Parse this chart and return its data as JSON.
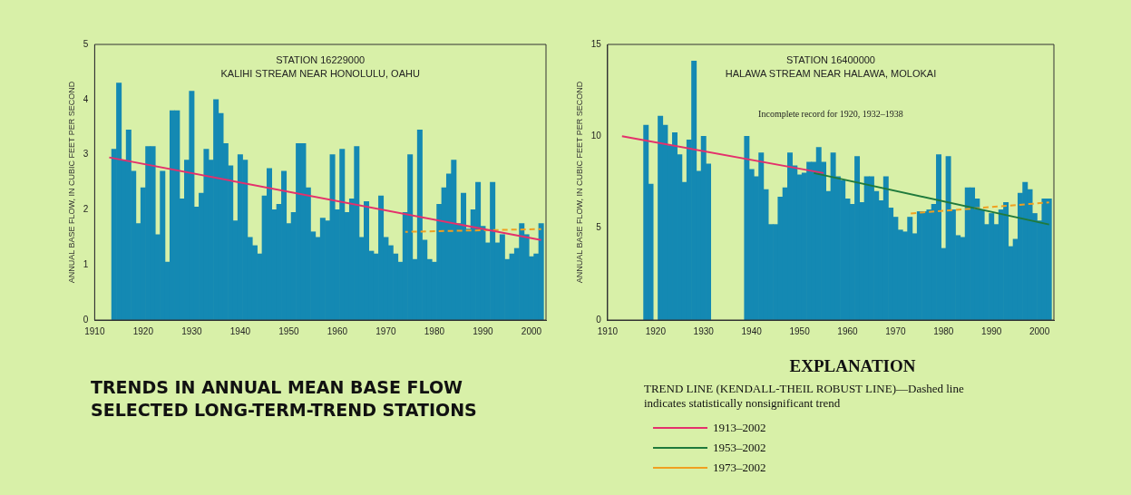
{
  "chart_data": [
    {
      "type": "bar",
      "title": "STATION 16229000\nKALIHI STREAM NEAR HONOLULU, OAHU",
      "subtitle": "TRENDS IN ANNUAL MEAN BASE FLOW\nSELECTED LONG-TERM-TREND STATIONS",
      "ylabel": "ANNUAL BASE FLOW, IN CUBIC FEET PER SECOND",
      "x": [
        1914,
        1915,
        1916,
        1917,
        1918,
        1919,
        1920,
        1921,
        1922,
        1923,
        1924,
        1925,
        1926,
        1927,
        1928,
        1929,
        1930,
        1931,
        1932,
        1933,
        1934,
        1935,
        1936,
        1937,
        1938,
        1939,
        1940,
        1941,
        1942,
        1943,
        1944,
        1945,
        1946,
        1947,
        1948,
        1949,
        1950,
        1951,
        1952,
        1953,
        1954,
        1955,
        1956,
        1957,
        1958,
        1959,
        1960,
        1961,
        1962,
        1963,
        1964,
        1965,
        1966,
        1967,
        1968,
        1969,
        1970,
        1971,
        1972,
        1973,
        1974,
        1975,
        1976,
        1977,
        1978,
        1979,
        1980,
        1981,
        1982,
        1983,
        1984,
        1985,
        1986,
        1987,
        1988,
        1989,
        1990,
        1991,
        1992,
        1993,
        1994,
        1995,
        1996,
        1997,
        1998,
        1999,
        2000,
        2001,
        2002
      ],
      "series": [
        {
          "color": "#1489b3",
          "values": [
            3.1,
            4.3,
            2.9,
            3.45,
            2.7,
            1.75,
            2.4,
            3.15,
            3.15,
            1.55,
            2.7,
            1.05,
            3.8,
            3.8,
            2.2,
            2.9,
            4.15,
            2.05,
            2.3,
            3.1,
            2.9,
            4.0,
            3.75,
            3.2,
            2.8,
            1.8,
            3.0,
            2.9,
            1.5,
            1.35,
            1.2,
            2.25,
            2.75,
            2.0,
            2.1,
            2.7,
            1.75,
            1.95,
            3.2,
            3.2,
            2.4,
            1.6,
            1.5,
            1.85,
            1.8,
            3.0,
            2.0,
            3.1,
            1.95,
            2.2,
            3.15,
            1.5,
            2.15,
            1.25,
            1.2,
            2.25,
            1.5,
            1.35,
            1.2,
            1.05,
            1.95,
            3.0,
            1.1,
            3.45,
            1.45,
            1.1,
            1.05,
            2.1,
            2.4,
            2.65,
            2.9,
            1.75,
            2.3,
            1.65,
            2.0,
            2.5,
            1.7,
            1.4,
            2.5,
            1.4,
            1.55,
            1.1,
            1.2,
            1.3,
            1.75,
            1.55,
            1.15,
            1.2,
            1.75
          ]
        },
        {
          "type": "line",
          "color": "#e4306c",
          "x": [
            1913,
            2002
          ],
          "values": [
            2.95,
            1.45
          ]
        },
        {
          "type": "line",
          "color": "#f0a020",
          "line_style": "dashed",
          "x": [
            1974,
            2002
          ],
          "values": [
            1.6,
            1.65
          ]
        }
      ],
      "xlim": [
        1910,
        2003
      ],
      "xticks": [
        1910,
        1920,
        1930,
        1940,
        1950,
        1960,
        1970,
        1980,
        1990,
        2000
      ],
      "ylim": [
        0,
        5
      ],
      "yticks": [
        0,
        1,
        2,
        3,
        4,
        5
      ],
      "grid": false,
      "legend": false,
      "marker": "none"
    },
    {
      "type": "bar",
      "title": "STATION 16400000\nHALAWA STREAM NEAR HALAWA, MOLOKAI",
      "subtitle": "TREND LINE (KENDALL-THEIL ROBUST LINE)—Dashed line indicates statistically nonsignificant trend",
      "ylabel": "ANNUAL BASE FLOW, IN CUBIC FEET PER SECOND",
      "x": [
        1918,
        1919,
        1920,
        1921,
        1922,
        1923,
        1924,
        1925,
        1926,
        1927,
        1928,
        1929,
        1930,
        1931,
        1932,
        1933,
        1934,
        1935,
        1936,
        1937,
        1938,
        1939,
        1940,
        1941,
        1942,
        1943,
        1944,
        1945,
        1946,
        1947,
        1948,
        1949,
        1950,
        1951,
        1952,
        1953,
        1954,
        1955,
        1956,
        1957,
        1958,
        1959,
        1960,
        1961,
        1962,
        1963,
        1964,
        1965,
        1966,
        1967,
        1968,
        1969,
        1970,
        1971,
        1972,
        1973,
        1974,
        1975,
        1976,
        1977,
        1978,
        1979,
        1980,
        1981,
        1982,
        1983,
        1984,
        1985,
        1986,
        1987,
        1988,
        1989,
        1990,
        1991,
        1992,
        1993,
        1994,
        1995,
        1996,
        1997,
        1998,
        1999,
        2000,
        2001,
        2002
      ],
      "series": [
        {
          "color": "#1489b3",
          "values": [
            10.6,
            7.4,
            null,
            11.1,
            10.6,
            9.5,
            10.2,
            9.0,
            7.5,
            9.8,
            14.1,
            8.1,
            10.0,
            8.5,
            null,
            null,
            null,
            null,
            null,
            null,
            null,
            10.0,
            8.2,
            7.8,
            9.1,
            7.1,
            5.2,
            5.2,
            6.7,
            7.2,
            9.1,
            8.4,
            7.9,
            8.0,
            8.6,
            8.6,
            9.4,
            8.6,
            7.0,
            9.1,
            7.8,
            7.6,
            6.6,
            6.3,
            8.9,
            6.4,
            7.8,
            7.8,
            7.0,
            6.5,
            7.8,
            6.1,
            5.6,
            4.9,
            4.8,
            5.6,
            4.7,
            5.9,
            5.9,
            6.0,
            6.3,
            9.0,
            3.9,
            8.9,
            6.0,
            4.6,
            4.5,
            7.2,
            7.2,
            6.6,
            6.0,
            5.2,
            5.8,
            5.2,
            6.0,
            6.4,
            4.0,
            4.4,
            6.9,
            7.5,
            7.1,
            5.8,
            5.4,
            6.6,
            6.6
          ]
        },
        {
          "type": "line",
          "name": "1913–2002",
          "color": "#e4306c",
          "x": [
            1913,
            1955
          ],
          "values": [
            10.0,
            8.0
          ]
        },
        {
          "type": "line",
          "name": "1953–2002",
          "color": "#1f7a3c",
          "x": [
            1953,
            2002
          ],
          "values": [
            8.0,
            5.2
          ]
        },
        {
          "type": "line",
          "name": "1973–2002",
          "color": "#f0a020",
          "line_style": "dashed",
          "x": [
            1973,
            2002
          ],
          "values": [
            5.8,
            6.4
          ]
        }
      ],
      "xlim": [
        1910,
        2003
      ],
      "xticks": [
        1910,
        1920,
        1930,
        1940,
        1950,
        1960,
        1970,
        1980,
        1990,
        2000
      ],
      "ylim": [
        0,
        15
      ],
      "yticks": [
        0,
        5,
        10,
        15
      ],
      "grid": false,
      "legend": "bottom",
      "marker": "none",
      "legend_title": "EXPLANATION",
      "annotations": [
        "Incomplete record for 1920, 1932–1938"
      ]
    }
  ]
}
